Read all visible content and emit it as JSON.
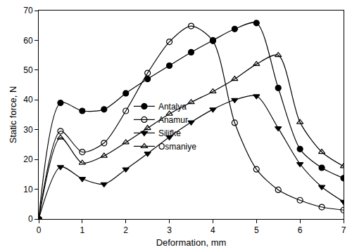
{
  "chart_data": {
    "type": "line",
    "x_label": "Deformation, mm",
    "y_label": "Static force, N",
    "x": [
      0,
      0.5,
      1,
      1.5,
      2,
      2.5,
      3,
      3.5,
      4,
      4.5,
      5,
      5.5,
      6,
      6.5,
      7
    ],
    "series": [
      {
        "name": "Antalya",
        "color": "#000000",
        "marker": "circle",
        "line_style": "solid",
        "values": [
          0,
          39,
          36.3,
          36.8,
          42.2,
          47,
          51.5,
          56,
          60,
          63.8,
          65.8,
          44,
          23.5,
          17.2,
          13.7
        ]
      },
      {
        "name": "Anamur",
        "color": "#000000",
        "marker": "circle-open",
        "line_style": "solid",
        "values": [
          0,
          29.5,
          22.5,
          25.5,
          36.3,
          49,
          59.5,
          64.8,
          59.8,
          32.3,
          16.7,
          9.8,
          6.3,
          4,
          3
        ]
      },
      {
        "name": "Silifke",
        "color": "#000000",
        "marker": "triangle-down",
        "line_style": "solid",
        "values": [
          0,
          17.5,
          13.5,
          11.7,
          16.7,
          22,
          27.5,
          32.5,
          36.8,
          40,
          41.3,
          30.5,
          18.5,
          10.8,
          5.8
        ]
      },
      {
        "name": "Osmaniye",
        "color": "#000000",
        "marker": "triangle-up-open",
        "line_style": "solid",
        "values": [
          0,
          27.3,
          18.8,
          21.2,
          25.7,
          30.5,
          35.3,
          39.2,
          42.8,
          47,
          52,
          55,
          32.5,
          22.5,
          17.7
        ]
      }
    ],
    "xlim": [
      0,
      7
    ],
    "xticks": [
      0,
      1,
      2,
      3,
      4,
      5,
      6,
      7
    ],
    "ylim": [
      0,
      70
    ],
    "yticks": [
      0,
      10,
      20,
      30,
      40,
      50,
      60,
      70
    ],
    "grid": false,
    "legend": "center"
  }
}
